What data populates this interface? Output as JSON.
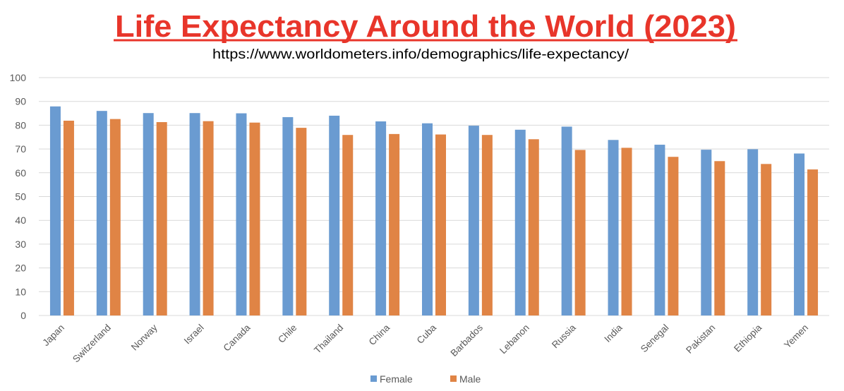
{
  "chart_data": {
    "type": "bar",
    "title": "Life Expectancy Around the World (2023)",
    "subtitle": "https://www.worldometers.info/demographics/life-expectancy/",
    "xlabel": "",
    "ylabel": "",
    "ylim": [
      0,
      100
    ],
    "yticks": [
      0,
      10,
      20,
      30,
      40,
      50,
      60,
      70,
      80,
      90,
      100
    ],
    "grid": true,
    "legend_position": "bottom",
    "categories": [
      "Japan",
      "Switzerland",
      "Norway",
      "Israel",
      "Canada",
      "Chile",
      "Thailand",
      "China",
      "Cuba",
      "Barbados",
      "Lebanon",
      "Russia",
      "India",
      "Senegal",
      "Pakistan",
      "Ethiopia",
      "Yemen"
    ],
    "series": [
      {
        "name": "Female",
        "color": "#6a9bd1",
        "values": [
          87.9,
          86.0,
          85.1,
          85.1,
          85.0,
          83.4,
          84.0,
          81.6,
          80.8,
          79.8,
          78.1,
          79.4,
          73.8,
          71.8,
          69.7,
          69.9,
          68.1
        ]
      },
      {
        "name": "Male",
        "color": "#e08445",
        "values": [
          81.9,
          82.6,
          81.3,
          81.7,
          81.1,
          78.9,
          75.9,
          76.3,
          76.1,
          75.9,
          74.1,
          69.6,
          70.5,
          66.7,
          64.9,
          63.7,
          61.4
        ]
      }
    ],
    "title_color": "#e8352a"
  }
}
